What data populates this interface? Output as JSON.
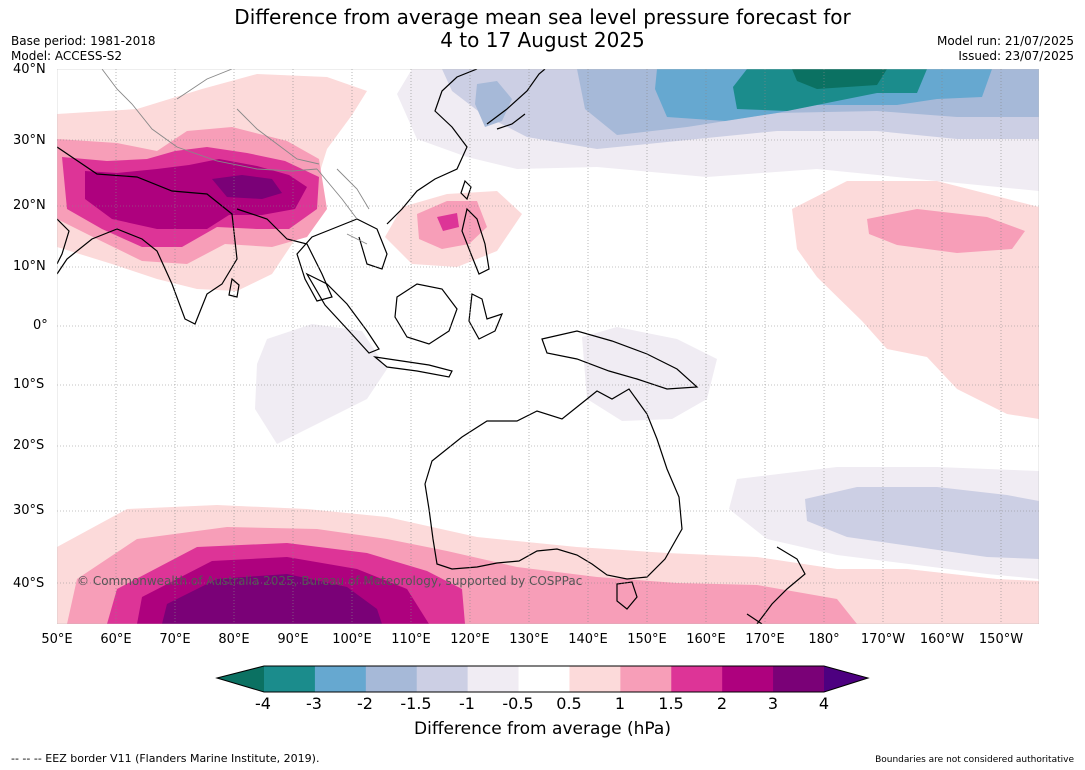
{
  "title": {
    "line1": "Difference from average mean sea level pressure forecast for",
    "line2": "4 to 17 August 2025"
  },
  "meta": {
    "base_period": "Base period: 1981-2018",
    "model": "Model: ACCESS-S2",
    "model_run": "Model run: 21/07/2025",
    "issued": "Issued: 23/07/2025"
  },
  "map": {
    "lat_labels": [
      "40°N",
      "30°N",
      "20°N",
      "10°N",
      "0°",
      "10°S",
      "20°S",
      "30°S",
      "40°S"
    ],
    "lon_labels": [
      "50°E",
      "60°E",
      "70°E",
      "80°E",
      "90°E",
      "100°E",
      "110°E",
      "120°E",
      "130°E",
      "140°E",
      "150°E",
      "160°E",
      "170°E",
      "180°",
      "170°W",
      "160°W",
      "150°W"
    ],
    "copyright": "© Commonwealth of Australia 2025, Bureau of Meteorology, supported by COSPPac"
  },
  "colorbar": {
    "label": "Difference from average (hPa)",
    "ticks": [
      "-4",
      "-3",
      "-2",
      "-1.5",
      "-1",
      "-0.5",
      "0.5",
      "1",
      "1.5",
      "2",
      "3",
      "4"
    ],
    "colors": [
      "#1b8c8c",
      "#66a8d0",
      "#a6b9d8",
      "#cccfe4",
      "#f0ecf3",
      "#ffffff",
      "#fcdada",
      "#f79eb8",
      "#dd3497",
      "#ae017e",
      "#7a0177"
    ],
    "low_extend_color": "#0b7162",
    "high_extend_color": "#4d0080"
  },
  "footer": {
    "left": "--  --  -- EEZ border V11 (Flanders Marine Institute, 2019).",
    "right": "Boundaries are not considered authoritative"
  }
}
